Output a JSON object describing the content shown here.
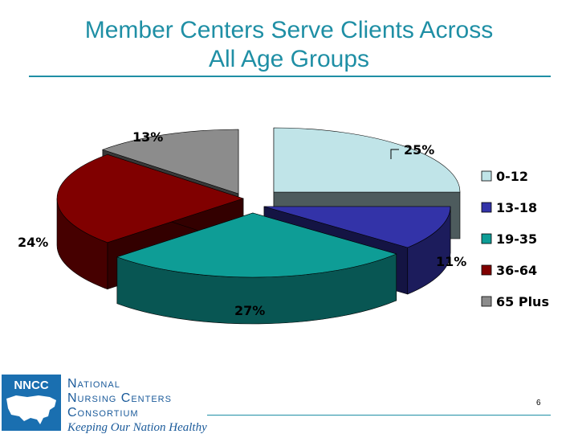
{
  "slide": {
    "title_line1": "Member Centers Serve Clients Across",
    "title_line2": "All Age Groups",
    "page_number": "6"
  },
  "logo": {
    "abbr": "NNCC",
    "name_line1": "National",
    "name_line2": "Nursing Centers",
    "name_line3": "Consortium",
    "tagline": "Keeping Our Nation Healthy"
  },
  "chart_data": {
    "type": "pie",
    "title": "",
    "legend_position": "right",
    "categories": [
      "0-12",
      "13-18",
      "19-35",
      "36-64",
      "65 Plus"
    ],
    "values": [
      25,
      11,
      27,
      24,
      13
    ],
    "labels": [
      "25%",
      "11%",
      "27%",
      "24%",
      "13%"
    ],
    "colors": [
      "#c0e4e8",
      "#3333a8",
      "#0e9d96",
      "#800000",
      "#8c8c8c"
    ]
  }
}
